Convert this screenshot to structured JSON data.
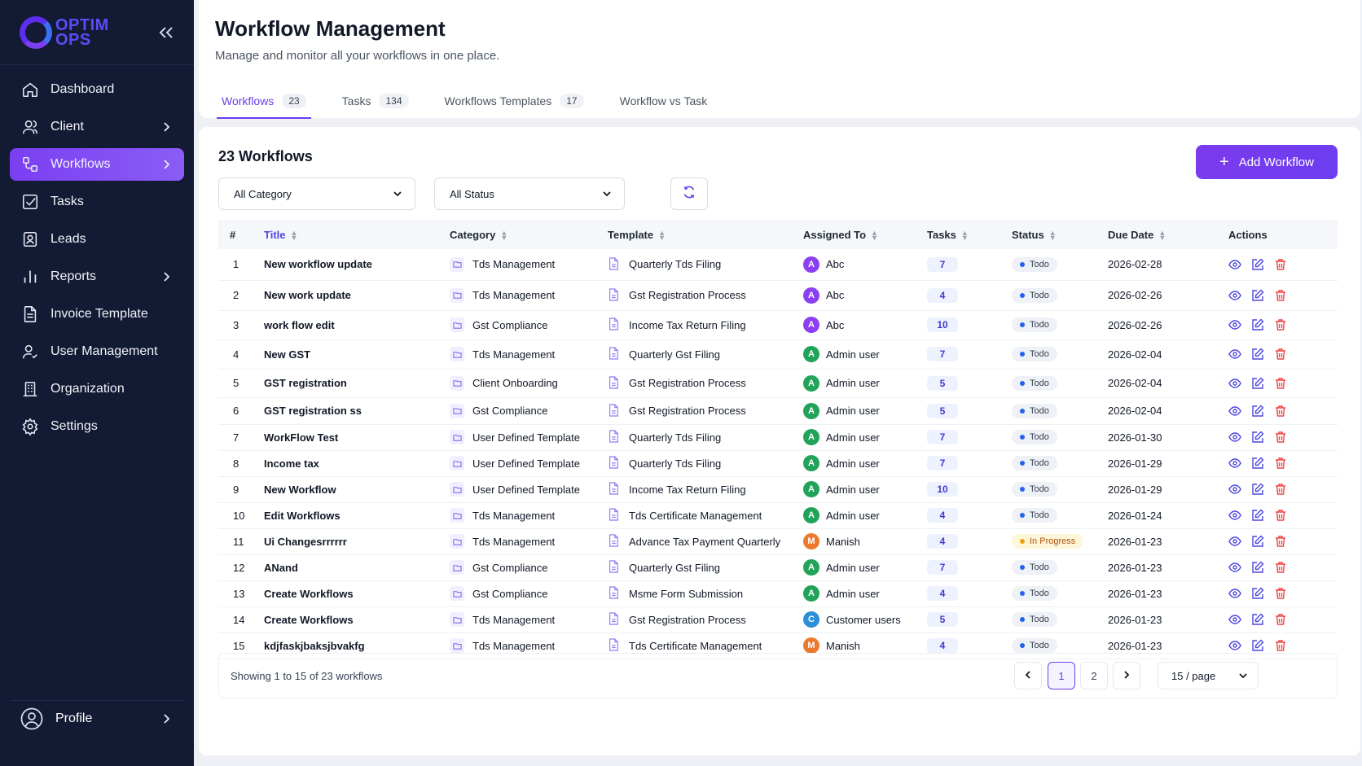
{
  "brand": {
    "line1": "OPTIM",
    "line2": "OPS"
  },
  "sidebar": {
    "items": [
      {
        "label": "Dashboard"
      },
      {
        "label": "Client"
      },
      {
        "label": "Workflows"
      },
      {
        "label": "Tasks"
      },
      {
        "label": "Leads"
      },
      {
        "label": "Reports"
      },
      {
        "label": "Invoice Template"
      },
      {
        "label": "User Management"
      },
      {
        "label": "Organization"
      },
      {
        "label": "Settings"
      }
    ],
    "profile": "Profile"
  },
  "header": {
    "title": "Workflow Management",
    "subtitle": "Manage and monitor all your workflows in one place.",
    "tabs": [
      {
        "label": "Workflows",
        "count": "23"
      },
      {
        "label": "Tasks",
        "count": "134"
      },
      {
        "label": "Workflows Templates",
        "count": "17"
      },
      {
        "label": "Workflow vs Task",
        "count": ""
      }
    ]
  },
  "main": {
    "heading": "23 Workflows",
    "add_button": "Add Workflow",
    "filters": {
      "category": "All Category",
      "status": "All Status"
    },
    "columns": [
      "#",
      "Title",
      "Category",
      "Template",
      "Assigned To",
      "Tasks",
      "Status",
      "Due Date",
      "Actions"
    ],
    "rows": [
      {
        "n": "1",
        "title": "New workflow update",
        "category": "Tds Management",
        "template": "Quarterly Tds Filing",
        "initial": "A",
        "assigned": "Abc",
        "tasks": "7",
        "status": "Todo",
        "due": "2026-02-28"
      },
      {
        "n": "2",
        "title": "New work update",
        "category": "Tds Management",
        "template": "Gst Registration Process",
        "initial": "A",
        "assigned": "Abc",
        "tasks": "4",
        "status": "Todo",
        "due": "2026-02-26"
      },
      {
        "n": "3",
        "title": "work flow edit",
        "category": "Gst Compliance",
        "template": "Income Tax Return Filing",
        "initial": "A",
        "assigned": "Abc",
        "tasks": "10",
        "status": "Todo",
        "due": "2026-02-26"
      },
      {
        "n": "4",
        "title": "New GST",
        "category": "Tds Management",
        "template": "Quarterly Gst Filing",
        "initial": "A",
        "assigned": "Admin user",
        "tasks": "7",
        "status": "Todo",
        "due": "2026-02-04"
      },
      {
        "n": "5",
        "title": "GST registration",
        "category": "Client Onboarding",
        "template": "Gst Registration Process",
        "initial": "A",
        "assigned": "Admin user",
        "tasks": "5",
        "status": "Todo",
        "due": "2026-02-04"
      },
      {
        "n": "6",
        "title": "GST registration ss",
        "category": "Gst Compliance",
        "template": "Gst Registration Process",
        "initial": "A",
        "assigned": "Admin user",
        "tasks": "5",
        "status": "Todo",
        "due": "2026-02-04"
      },
      {
        "n": "7",
        "title": "WorkFlow Test",
        "category": "User Defined Template",
        "template": "Quarterly Tds Filing",
        "initial": "A",
        "assigned": "Admin user",
        "tasks": "7",
        "status": "Todo",
        "due": "2026-01-30"
      },
      {
        "n": "8",
        "title": "Income tax",
        "category": "User Defined Template",
        "template": "Quarterly Tds Filing",
        "initial": "A",
        "assigned": "Admin user",
        "tasks": "7",
        "status": "Todo",
        "due": "2026-01-29"
      },
      {
        "n": "9",
        "title": "New Workflow",
        "category": "User Defined Template",
        "template": "Income Tax Return Filing",
        "initial": "A",
        "assigned": "Admin user",
        "tasks": "10",
        "status": "Todo",
        "due": "2026-01-29"
      },
      {
        "n": "10",
        "title": "Edit Workflows",
        "category": "Tds Management",
        "template": "Tds Certificate Management",
        "initial": "A",
        "assigned": "Admin user",
        "tasks": "4",
        "status": "Todo",
        "due": "2026-01-24"
      },
      {
        "n": "11",
        "title": "Ui Changesrrrrrr",
        "category": "Tds Management",
        "template": "Advance Tax Payment Quarterly",
        "initial": "M",
        "assigned": "Manish",
        "tasks": "4",
        "status": "In Progress",
        "due": "2026-01-23"
      },
      {
        "n": "12",
        "title": "ANand",
        "category": "Gst Compliance",
        "template": "Quarterly Gst Filing",
        "initial": "A",
        "assigned": "Admin user",
        "tasks": "7",
        "status": "Todo",
        "due": "2026-01-23"
      },
      {
        "n": "13",
        "title": "Create Workflows",
        "category": "Gst Compliance",
        "template": "Msme Form Submission",
        "initial": "A",
        "assigned": "Admin user",
        "tasks": "4",
        "status": "Todo",
        "due": "2026-01-23"
      },
      {
        "n": "14",
        "title": "Create Workflows",
        "category": "Tds Management",
        "template": "Gst Registration Process",
        "initial": "C",
        "assigned": "Customer users",
        "tasks": "5",
        "status": "Todo",
        "due": "2026-01-23"
      },
      {
        "n": "15",
        "title": "kdjfaskjbaksjbvakfg",
        "category": "Tds Management",
        "template": "Tds Certificate Management",
        "initial": "M",
        "assigned": "Manish",
        "tasks": "4",
        "status": "Todo",
        "due": "2026-01-23"
      }
    ],
    "pagination": {
      "showing": "Showing 1 to 15 of 23 workflows",
      "pages": [
        "1",
        "2"
      ],
      "current": "1",
      "per_page": "15 / page"
    }
  },
  "colors": {
    "sidebar_bg": "#131a33",
    "accent": "#6d3df0",
    "avatar_admin": "#22a35a",
    "avatar_abc": "#8b3ff2",
    "avatar_manish": "#ec7a2e",
    "avatar_customer": "#2d8fd6",
    "status_todo_dot": "#2563eb",
    "status_progress_dot": "#f59e0b"
  }
}
